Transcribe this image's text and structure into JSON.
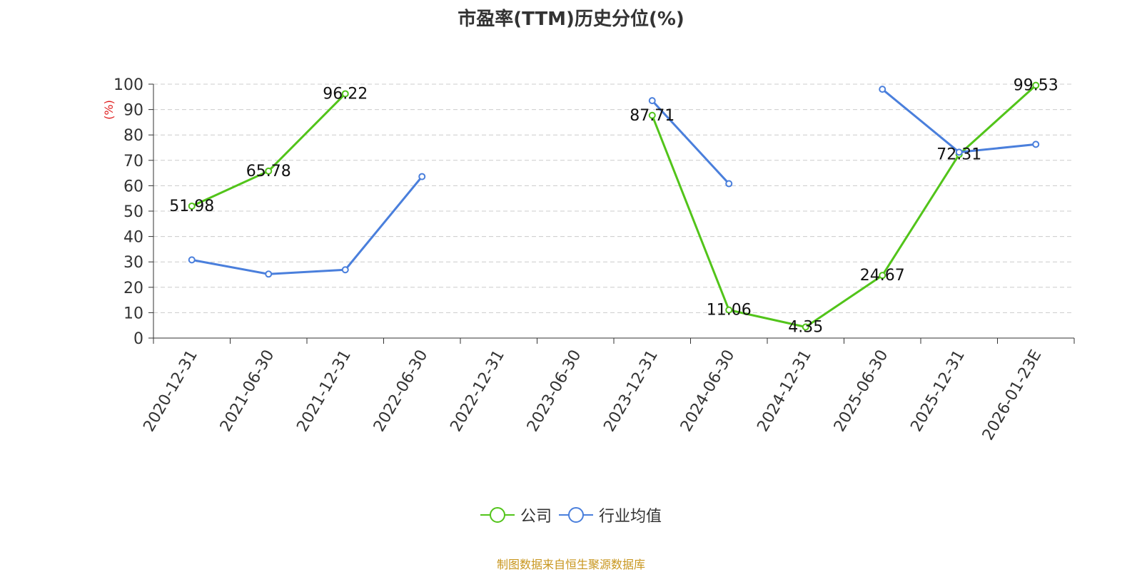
{
  "chart_data": {
    "type": "line",
    "title": "市盈率(TTM)历史分位(%)",
    "ylabel": "(%)",
    "ylim": [
      0,
      100
    ],
    "yticks": [
      0,
      10,
      20,
      30,
      40,
      50,
      60,
      70,
      80,
      90,
      100
    ],
    "grid": true,
    "legend_position": "bottom-center",
    "categories": [
      "2020-12-31",
      "2021-06-30",
      "2021-12-31",
      "2022-06-30",
      "2022-12-31",
      "2023-06-30",
      "2023-12-31",
      "2024-06-30",
      "2024-12-31",
      "2025-06-30",
      "2025-12-31",
      "2026-01-23E"
    ],
    "series": [
      {
        "name": "公司",
        "color": "#52c41a",
        "values": [
          51.98,
          65.78,
          96.22,
          null,
          null,
          null,
          87.71,
          11.06,
          4.35,
          24.67,
          72.31,
          99.53
        ],
        "show_labels": true
      },
      {
        "name": "行业均值",
        "color": "#4a7fdc",
        "values": [
          30.8,
          25.2,
          26.9,
          63.6,
          null,
          null,
          93.5,
          60.8,
          null,
          98.0,
          73.2,
          76.3
        ],
        "show_labels": false
      }
    ]
  },
  "source_note": "制图数据来自恒生聚源数据库"
}
